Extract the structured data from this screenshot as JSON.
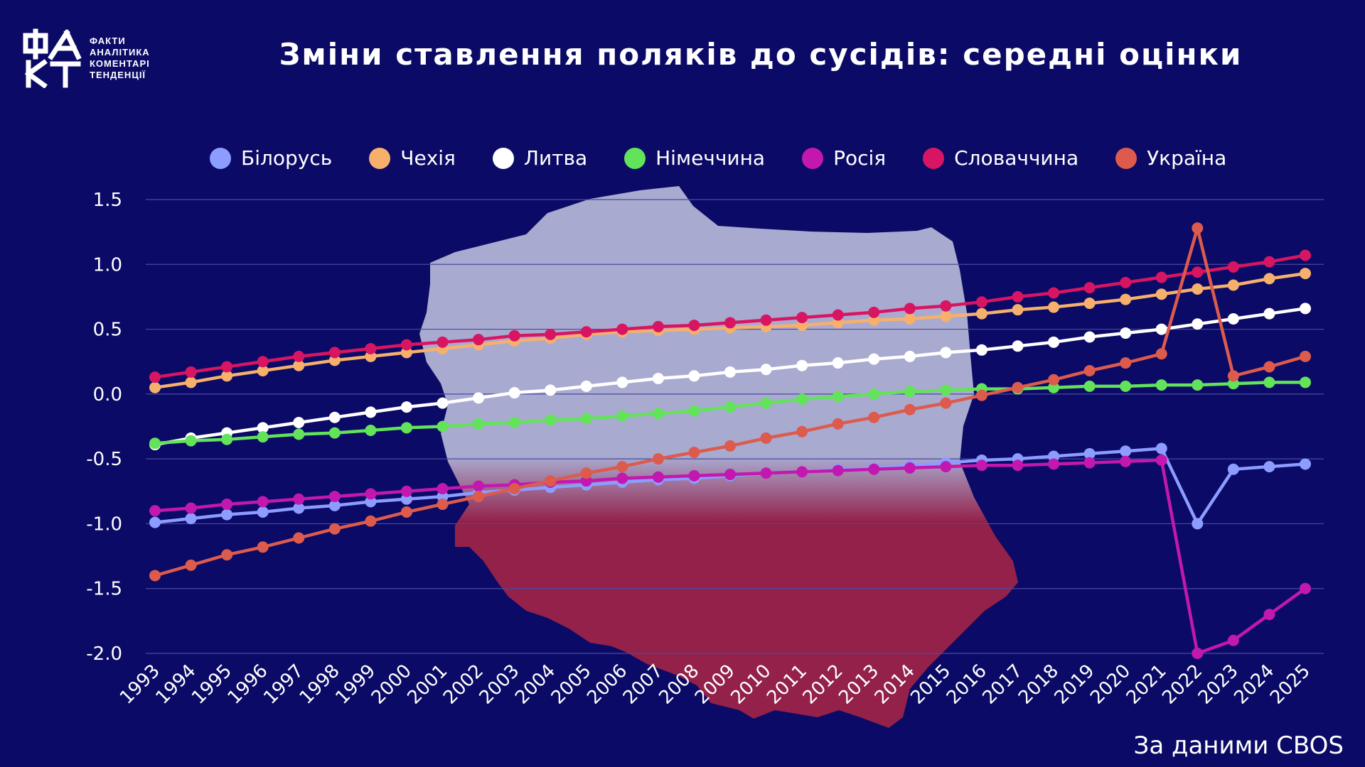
{
  "logo": {
    "mark": "ФАКТ",
    "lines": [
      "ФАКТИ",
      "АНАЛІТИКА",
      "КОМЕНТАРІ",
      "ТЕНДЕНЦІЇ"
    ]
  },
  "title": "Зміни ставлення поляків до сусідів: середні оцінки",
  "source": "За даними CBOS",
  "colors": {
    "background": "#0b0a66",
    "map_top": "#a9aad0",
    "map_bottom": "#93214a"
  },
  "chart_data": {
    "type": "line",
    "title": "Зміни ставлення поляків до сусідів: середні оцінки",
    "xlabel": "",
    "ylabel": "",
    "x": [
      "1993",
      "1994",
      "1995",
      "1996",
      "1997",
      "1998",
      "1999",
      "2000",
      "2001",
      "2002",
      "2003",
      "2004",
      "2005",
      "2006",
      "2007",
      "2008",
      "2009",
      "2010",
      "2011",
      "2012",
      "2013",
      "2014",
      "2015",
      "2016",
      "2017",
      "2018",
      "2019",
      "2020",
      "2021",
      "2022",
      "2023",
      "2024",
      "2025"
    ],
    "ylim": [
      -2.0,
      1.5
    ],
    "yticks": [
      "1.5",
      "1.0",
      "0.5",
      "0.0",
      "-0.5",
      "-1.0",
      "-1.5",
      "-2.0"
    ],
    "ytick_values": [
      1.5,
      1.0,
      0.5,
      0.0,
      -0.5,
      -1.0,
      -1.5,
      -2.0
    ],
    "grid": true,
    "legend_position": "top",
    "series": [
      {
        "name": "Білорусь",
        "color": "#8d9cff",
        "values": [
          -0.99,
          -0.96,
          -0.93,
          -0.91,
          -0.88,
          -0.86,
          -0.83,
          -0.81,
          -0.79,
          -0.76,
          -0.74,
          -0.72,
          -0.7,
          -0.68,
          -0.66,
          -0.65,
          -0.63,
          -0.61,
          -0.6,
          -0.58,
          -0.57,
          -0.55,
          -0.53,
          -0.51,
          -0.5,
          -0.48,
          -0.46,
          -0.44,
          -0.42,
          -1.0,
          -0.58,
          -0.56,
          -0.54
        ]
      },
      {
        "name": "Чехія",
        "color": "#f6b06c",
        "values": [
          0.05,
          0.09,
          0.14,
          0.18,
          0.22,
          0.26,
          0.29,
          0.32,
          0.35,
          0.38,
          0.41,
          0.43,
          0.46,
          0.48,
          0.49,
          0.5,
          0.51,
          0.52,
          0.53,
          0.55,
          0.57,
          0.58,
          0.6,
          0.62,
          0.65,
          0.67,
          0.7,
          0.73,
          0.77,
          0.81,
          0.84,
          0.89,
          0.93
        ]
      },
      {
        "name": "Литва",
        "color": "#ffffff",
        "values": [
          -0.39,
          -0.34,
          -0.3,
          -0.26,
          -0.22,
          -0.18,
          -0.14,
          -0.1,
          -0.07,
          -0.03,
          0.01,
          0.03,
          0.06,
          0.09,
          0.12,
          0.14,
          0.17,
          0.19,
          0.22,
          0.24,
          0.27,
          0.29,
          0.32,
          0.34,
          0.37,
          0.4,
          0.44,
          0.47,
          0.5,
          0.54,
          0.58,
          0.62,
          0.66
        ]
      },
      {
        "name": "Німеччина",
        "color": "#62e35a",
        "values": [
          -0.38,
          -0.36,
          -0.35,
          -0.33,
          -0.31,
          -0.3,
          -0.28,
          -0.26,
          -0.25,
          -0.23,
          -0.22,
          -0.2,
          -0.19,
          -0.17,
          -0.15,
          -0.13,
          -0.1,
          -0.07,
          -0.04,
          -0.02,
          0.0,
          0.02,
          0.03,
          0.04,
          0.04,
          0.05,
          0.06,
          0.06,
          0.07,
          0.07,
          0.08,
          0.09,
          0.09
        ]
      },
      {
        "name": "Росія",
        "color": "#c218b0",
        "values": [
          -0.9,
          -0.88,
          -0.85,
          -0.83,
          -0.81,
          -0.79,
          -0.77,
          -0.75,
          -0.73,
          -0.71,
          -0.7,
          -0.68,
          -0.67,
          -0.65,
          -0.64,
          -0.63,
          -0.62,
          -0.61,
          -0.6,
          -0.59,
          -0.58,
          -0.57,
          -0.56,
          -0.55,
          -0.55,
          -0.54,
          -0.53,
          -0.52,
          -0.51,
          -2.0,
          -1.9,
          -1.7,
          -1.5
        ]
      },
      {
        "name": "Словаччина",
        "color": "#d81563",
        "values": [
          0.13,
          0.17,
          0.21,
          0.25,
          0.29,
          0.32,
          0.35,
          0.38,
          0.4,
          0.42,
          0.45,
          0.46,
          0.48,
          0.5,
          0.52,
          0.53,
          0.55,
          0.57,
          0.59,
          0.61,
          0.63,
          0.66,
          0.68,
          0.71,
          0.75,
          0.78,
          0.82,
          0.86,
          0.9,
          0.94,
          0.98,
          1.02,
          1.07
        ]
      },
      {
        "name": "Україна",
        "color": "#dc5b4c",
        "values": [
          -1.4,
          -1.32,
          -1.24,
          -1.18,
          -1.11,
          -1.04,
          -0.98,
          -0.91,
          -0.85,
          -0.79,
          -0.73,
          -0.67,
          -0.61,
          -0.56,
          -0.5,
          -0.45,
          -0.4,
          -0.34,
          -0.29,
          -0.23,
          -0.18,
          -0.12,
          -0.07,
          -0.01,
          0.05,
          0.11,
          0.18,
          0.24,
          0.31,
          1.28,
          0.14,
          0.21,
          0.29
        ]
      }
    ]
  }
}
